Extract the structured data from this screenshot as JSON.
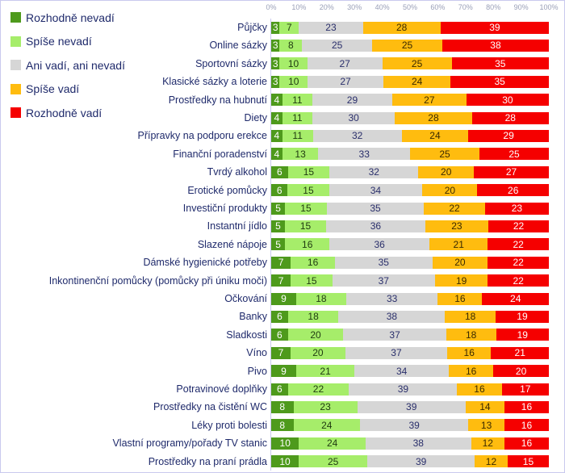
{
  "chart_data": {
    "type": "bar",
    "orientation": "horizontal",
    "stacked": true,
    "normalized": true,
    "xlim": [
      0,
      100
    ],
    "x_ticks": [
      "0%",
      "10%",
      "20%",
      "30%",
      "40%",
      "50%",
      "60%",
      "70%",
      "80%",
      "90%",
      "100%"
    ],
    "legend_placement": "top-left",
    "categories": [
      "Půjčky",
      "Online sázky",
      "Sportovní sázky",
      "Klasické sázky a loterie",
      "Prostředky na hubnutí",
      "Diety",
      "Přípravky na podporu erekce",
      "Finanční poradenství",
      "Tvrdý alkohol",
      "Erotické pomůcky",
      "Investiční produkty",
      "Instantní jídlo",
      "Slazené nápoje",
      "Dámské hygienické potřeby",
      "Inkontinenční pomůcky (pomůcky při úniku moči)",
      "Očkování",
      "Banky",
      "Sladkosti",
      "Víno",
      "Pivo",
      "Potravinové doplňky",
      "Prostředky na čistění WC",
      "Léky proti bolesti",
      "Vlastní programy/pořady TV stanic",
      "Prostředky na praní prádla"
    ],
    "series": [
      {
        "name": "Rozhodně nevadí",
        "color": "#4e9a1c",
        "text_color": "#ffffff",
        "values": [
          3,
          3,
          3,
          3,
          4,
          4,
          4,
          4,
          6,
          6,
          5,
          5,
          5,
          7,
          7,
          9,
          6,
          6,
          7,
          9,
          6,
          8,
          8,
          10,
          10
        ]
      },
      {
        "name": "Spíše nevadí",
        "color": "#a6ed6a",
        "text_color": "#1f3a10",
        "values": [
          7,
          8,
          10,
          10,
          11,
          11,
          11,
          13,
          15,
          15,
          15,
          15,
          16,
          16,
          15,
          18,
          18,
          20,
          20,
          21,
          22,
          23,
          24,
          24,
          25
        ]
      },
      {
        "name": "Ani vadí, ani nevadí",
        "color": "#d6d6d6",
        "text_color": "#2a2f6b",
        "values": [
          23,
          25,
          27,
          27,
          29,
          30,
          32,
          33,
          32,
          34,
          35,
          36,
          36,
          35,
          37,
          33,
          38,
          37,
          37,
          34,
          39,
          39,
          39,
          38,
          39
        ]
      },
      {
        "name": "Spíše vadí",
        "color": "#ffbc0f",
        "text_color": "#3a2a00",
        "values": [
          28,
          25,
          25,
          24,
          27,
          28,
          24,
          25,
          20,
          20,
          22,
          23,
          21,
          20,
          19,
          16,
          18,
          18,
          16,
          16,
          16,
          14,
          13,
          12,
          12
        ]
      },
      {
        "name": "Rozhodně vadí",
        "color": "#f50000",
        "text_color": "#ffffff",
        "values": [
          39,
          38,
          35,
          35,
          30,
          28,
          29,
          25,
          27,
          26,
          23,
          22,
          22,
          22,
          22,
          24,
          19,
          19,
          21,
          20,
          17,
          16,
          16,
          16,
          15
        ]
      }
    ]
  }
}
